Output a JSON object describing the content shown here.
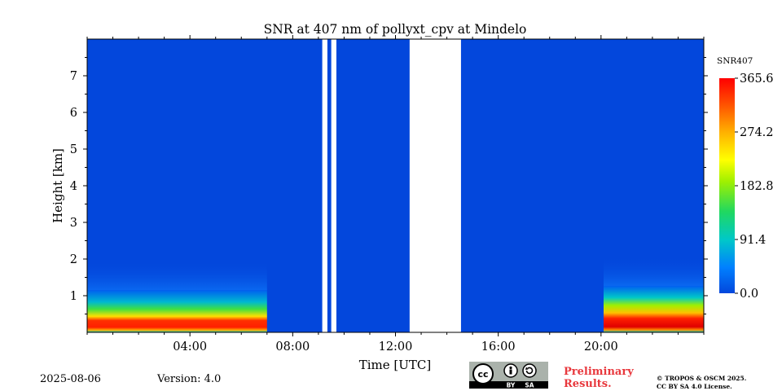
{
  "chart_data": {
    "type": "heatmap",
    "title": "SNR at 407 nm of pollyxt_cpv at Mindelo",
    "xlabel": "Time [UTC]",
    "ylabel": "Height [km]",
    "xlim_hours": [
      0,
      24
    ],
    "ylim_km": [
      0,
      8
    ],
    "x_ticks": [
      {
        "hour": 4,
        "label": "04:00"
      },
      {
        "hour": 8,
        "label": "08:00"
      },
      {
        "hour": 12,
        "label": "12:00"
      },
      {
        "hour": 16,
        "label": "16:00"
      },
      {
        "hour": 20,
        "label": "20:00"
      }
    ],
    "y_ticks": [
      {
        "km": 1,
        "label": "1"
      },
      {
        "km": 2,
        "label": "2"
      },
      {
        "km": 3,
        "label": "3"
      },
      {
        "km": 4,
        "label": "4"
      },
      {
        "km": 5,
        "label": "5"
      },
      {
        "km": 6,
        "label": "6"
      },
      {
        "km": 7,
        "label": "7"
      }
    ],
    "colorbar": {
      "label": "SNR407",
      "range": [
        0.0,
        365.6
      ],
      "ticks": [
        {
          "value": 0.0,
          "label": "0.0"
        },
        {
          "value": 91.4,
          "label": "91.4"
        },
        {
          "value": 182.8,
          "label": "182.8"
        },
        {
          "value": 274.2,
          "label": "274.2"
        },
        {
          "value": 365.6,
          "label": "365.6"
        }
      ],
      "colormap": [
        "#0000ff",
        "#0080ff",
        "#00c8c8",
        "#20d860",
        "#a0f000",
        "#ffff00",
        "#ffb000",
        "#ff5000",
        "#ff0000"
      ]
    },
    "no_data_gaps_hours": [
      [
        9.15,
        9.35
      ],
      [
        9.5,
        9.7
      ],
      [
        12.55,
        14.55
      ]
    ],
    "high_snr_segments": [
      {
        "start_hour": 0.0,
        "end_hour": 7.0,
        "peak_layer_km": [
          0.15,
          0.5
        ],
        "peak_snr": 330,
        "mixed_layer_top_km": 1.0
      },
      {
        "start_hour": 20.1,
        "end_hour": 24.0,
        "peak_layer_km": [
          0.15,
          0.55
        ],
        "peak_snr": 365,
        "mixed_layer_top_km": 1.1
      }
    ],
    "background_color": "#0347dc"
  },
  "footer": {
    "date": "2025-08-06",
    "version": "Version: 4.0",
    "preliminary_line1": "Preliminary",
    "preliminary_line2": "Results.",
    "copyright_line1": "© TROPOS & OSCM 2025.",
    "copyright_line2": "CC BY SA 4.0 License.",
    "license_by": "BY",
    "license_sa": "SA",
    "license_cc": "cc"
  }
}
